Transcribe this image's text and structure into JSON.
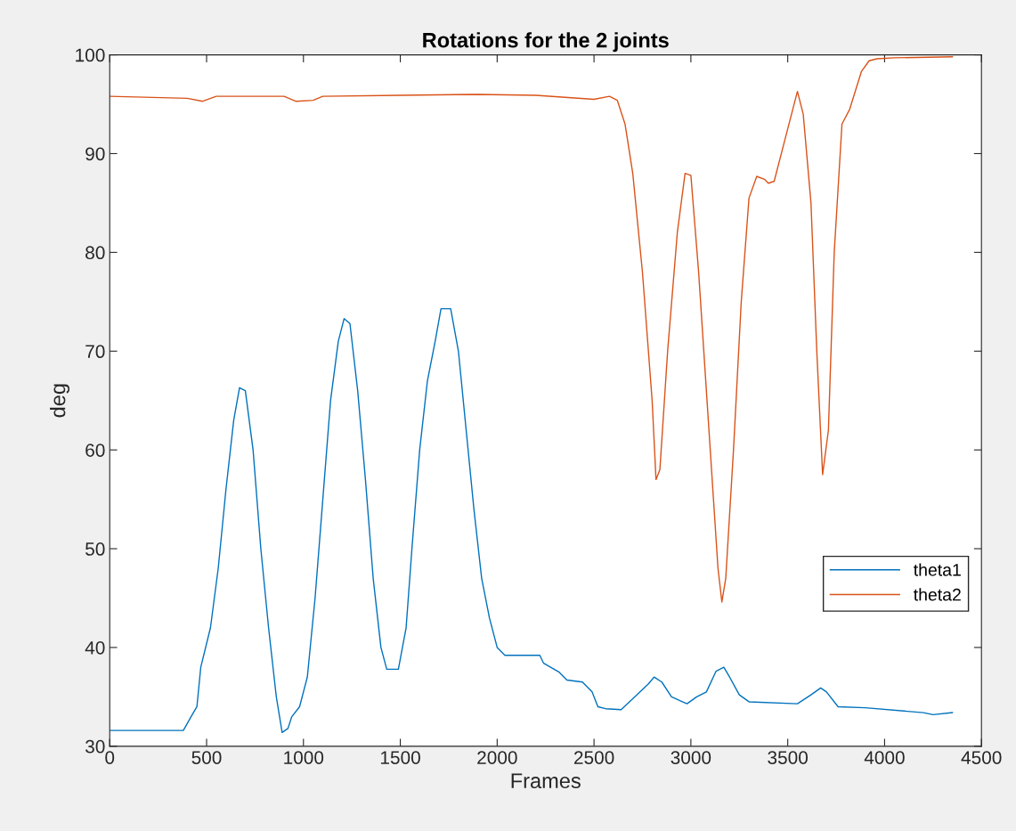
{
  "chart_data": {
    "type": "line",
    "title": "Rotations for the 2 joints",
    "xlabel": "Frames",
    "ylabel": "deg",
    "xlim": [
      0,
      4500
    ],
    "xticks": [
      0,
      500,
      1000,
      1500,
      2000,
      2500,
      3000,
      3500,
      4000,
      4500
    ],
    "ylim": [
      30,
      100
    ],
    "yticks": [
      30,
      40,
      50,
      60,
      70,
      80,
      90,
      100
    ],
    "grid": false,
    "legend": "right",
    "marker": "none",
    "line_style": "solid",
    "series": [
      {
        "name": "theta1",
        "color": "#0072bd",
        "x": [
          0,
          380,
          420,
          450,
          470,
          520,
          560,
          600,
          640,
          670,
          700,
          740,
          780,
          820,
          860,
          890,
          920,
          940,
          980,
          1020,
          1060,
          1100,
          1140,
          1180,
          1210,
          1240,
          1280,
          1320,
          1360,
          1400,
          1430,
          1490,
          1530,
          1560,
          1600,
          1640,
          1680,
          1710,
          1760,
          1800,
          1840,
          1880,
          1920,
          1960,
          2000,
          2040,
          2220,
          2240,
          2320,
          2360,
          2440,
          2490,
          2520,
          2560,
          2640,
          2700,
          2780,
          2810,
          2850,
          2900,
          2980,
          3030,
          3080,
          3130,
          3170,
          3200,
          3250,
          3300,
          3550,
          3620,
          3670,
          3700,
          3760,
          3900,
          4200,
          4250,
          4350
        ],
        "values": [
          31.6,
          31.6,
          33,
          34,
          38,
          42,
          48,
          56,
          63,
          66.3,
          66,
          60,
          50,
          42,
          35,
          31.4,
          31.8,
          33,
          34,
          37,
          45,
          55,
          65,
          71,
          73.3,
          72.8,
          66,
          57,
          47,
          40,
          37.8,
          37.8,
          42,
          50,
          60,
          67,
          71,
          74.3,
          74.3,
          70,
          62,
          54,
          47,
          43,
          40,
          39.2,
          39.2,
          38.4,
          37.5,
          36.7,
          36.5,
          35.5,
          34,
          33.8,
          33.7,
          34.8,
          36.3,
          37,
          36.5,
          35,
          34.3,
          35,
          35.5,
          37.6,
          38,
          37,
          35.2,
          34.5,
          34.3,
          35.2,
          35.9,
          35.5,
          34,
          33.9,
          33.4,
          33.2,
          33.4
        ]
      },
      {
        "name": "theta2",
        "color": "#d95319",
        "x": [
          0,
          400,
          480,
          550,
          900,
          960,
          1050,
          1100,
          1500,
          1900,
          2200,
          2500,
          2580,
          2620,
          2660,
          2700,
          2750,
          2800,
          2820,
          2840,
          2880,
          2930,
          2970,
          3000,
          3040,
          3080,
          3120,
          3140,
          3160,
          3180,
          3220,
          3260,
          3300,
          3340,
          3380,
          3400,
          3430,
          3480,
          3550,
          3580,
          3620,
          3650,
          3680,
          3710,
          3740,
          3780,
          3820,
          3880,
          3920,
          3960,
          4050,
          4350
        ],
        "values": [
          95.8,
          95.6,
          95.3,
          95.8,
          95.8,
          95.3,
          95.4,
          95.8,
          95.9,
          96,
          95.9,
          95.5,
          95.8,
          95.4,
          93,
          88,
          78,
          65,
          57,
          58,
          70,
          82,
          88,
          87.8,
          78,
          66,
          54,
          48,
          44.6,
          47,
          60,
          75,
          85.5,
          87.7,
          87.4,
          87,
          87.2,
          91,
          96.3,
          94,
          85,
          70,
          57.5,
          62,
          80,
          93,
          94.5,
          98.3,
          99.4,
          99.6,
          99.7,
          99.8
        ]
      }
    ]
  }
}
